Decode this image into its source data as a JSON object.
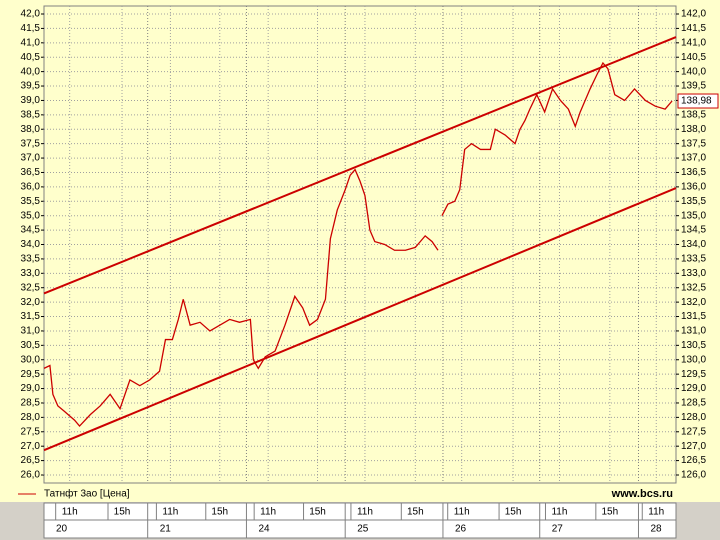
{
  "chart_data": {
    "type": "line",
    "source": "www.bcs.ru",
    "ylim": [
      26,
      42
    ],
    "yticks": [
      {
        "value": 26,
        "label": "26,0"
      },
      {
        "value": 26.5,
        "label": "26,5"
      },
      {
        "value": 27,
        "label": "27,0"
      },
      {
        "value": 27.5,
        "label": "27,5"
      },
      {
        "value": 28,
        "label": "28,0"
      },
      {
        "value": 28.5,
        "label": "28,5"
      },
      {
        "value": 29,
        "label": "29,0"
      },
      {
        "value": 29.5,
        "label": "29,5"
      },
      {
        "value": 30,
        "label": "30,0"
      },
      {
        "value": 30.5,
        "label": "30,5"
      },
      {
        "value": 31,
        "label": "31,0"
      },
      {
        "value": 31.5,
        "label": "31,5"
      },
      {
        "value": 32,
        "label": "32,0"
      },
      {
        "value": 32.5,
        "label": "32,5"
      },
      {
        "value": 33,
        "label": "33,0"
      },
      {
        "value": 33.5,
        "label": "33,5"
      },
      {
        "value": 34,
        "label": "34,0"
      },
      {
        "value": 34.5,
        "label": "34,5"
      },
      {
        "value": 35,
        "label": "35,0"
      },
      {
        "value": 35.5,
        "label": "35,5"
      },
      {
        "value": 36,
        "label": "36,0"
      },
      {
        "value": 36.5,
        "label": "36,5"
      },
      {
        "value": 37,
        "label": "37,0"
      },
      {
        "value": 37.5,
        "label": "37,5"
      },
      {
        "value": 38,
        "label": "38,0"
      },
      {
        "value": 38.5,
        "label": "38,5"
      },
      {
        "value": 39,
        "label": "39,0"
      },
      {
        "value": 39.5,
        "label": "39,5"
      },
      {
        "value": 40,
        "label": "40,0"
      },
      {
        "value": 40.5,
        "label": "40,5"
      },
      {
        "value": 41,
        "label": "41,0"
      },
      {
        "value": 41.5,
        "label": "41,5"
      },
      {
        "value": 42,
        "label": "42,0"
      }
    ],
    "y2lim": [
      126,
      142
    ],
    "y2ticks": [
      {
        "value": 126,
        "label": "126,0"
      },
      {
        "value": 126.5,
        "label": "126,5"
      },
      {
        "value": 127,
        "label": "127,0"
      },
      {
        "value": 127.5,
        "label": "127,5"
      },
      {
        "value": 128,
        "label": "128,0"
      },
      {
        "value": 128.5,
        "label": "128,5"
      },
      {
        "value": 129,
        "label": "129,0"
      },
      {
        "value": 129.5,
        "label": "129,5"
      },
      {
        "value": 130,
        "label": "130,0"
      },
      {
        "value": 130.5,
        "label": "130,5"
      },
      {
        "value": 131,
        "label": "131,0"
      },
      {
        "value": 131.5,
        "label": "131,5"
      },
      {
        "value": 132,
        "label": "132,0"
      },
      {
        "value": 132.5,
        "label": "132,5"
      },
      {
        "value": 133,
        "label": "133,0"
      },
      {
        "value": 133.5,
        "label": "133,5"
      },
      {
        "value": 134,
        "label": "134,0"
      },
      {
        "value": 134.5,
        "label": "134,5"
      },
      {
        "value": 135,
        "label": "135,0"
      },
      {
        "value": 135.5,
        "label": "135,5"
      },
      {
        "value": 136,
        "label": "136,0"
      },
      {
        "value": 136.5,
        "label": "136,5"
      },
      {
        "value": 137,
        "label": "137,0"
      },
      {
        "value": 137.5,
        "label": "137,5"
      },
      {
        "value": 138,
        "label": "138,0"
      },
      {
        "value": 138.5,
        "label": "138,5"
      },
      {
        "value": 139,
        "label": "139,0"
      },
      {
        "value": 139.5,
        "label": "139,5"
      },
      {
        "value": 140,
        "label": "140,0"
      },
      {
        "value": 140.5,
        "label": "140,5"
      },
      {
        "value": 141,
        "label": "141,0"
      },
      {
        "value": 141.5,
        "label": "141,5"
      },
      {
        "value": 142,
        "label": "142,0"
      }
    ],
    "xlim": [
      0,
      6.4
    ],
    "xticks": [
      {
        "value": 0.26,
        "label": "11h"
      },
      {
        "value": 0.79,
        "label": "15h"
      },
      {
        "value": 1.28,
        "label": "11h"
      },
      {
        "value": 1.78,
        "label": "15h"
      },
      {
        "value": 2.27,
        "label": "11h"
      },
      {
        "value": 2.77,
        "label": "15h"
      },
      {
        "value": 3.25,
        "label": "11h"
      },
      {
        "value": 3.76,
        "label": "15h"
      },
      {
        "value": 4.23,
        "label": "11h"
      },
      {
        "value": 4.75,
        "label": "15h"
      },
      {
        "value": 5.22,
        "label": "11h"
      },
      {
        "value": 5.73,
        "label": "15h"
      },
      {
        "value": 6.2,
        "label": "11h"
      }
    ],
    "dayticks": [
      {
        "value": 0,
        "label": "20"
      },
      {
        "value": 1.05,
        "label": "21"
      },
      {
        "value": 2.05,
        "label": "24"
      },
      {
        "value": 3.05,
        "label": "25"
      },
      {
        "value": 4.04,
        "label": "26"
      },
      {
        "value": 5.02,
        "label": "27"
      },
      {
        "value": 6.02,
        "label": "28"
      }
    ],
    "grid": true,
    "series": [
      {
        "name": "Татнфт 3ао [Цена]",
        "color": "#cc0000",
        "axis": "y2",
        "x": [
          0,
          0.06,
          0.09,
          0.14,
          0.21,
          0.31,
          0.36,
          0.47,
          0.57,
          0.67,
          0.77,
          0.87,
          0.97,
          1.07,
          1.17,
          1.23,
          1.3,
          1.36,
          1.41,
          1.48,
          1.58,
          1.68,
          1.78,
          1.88,
          1.98,
          2.09,
          2.12,
          2.17,
          2.24,
          2.34,
          2.44,
          2.54,
          2.62,
          2.69,
          2.77,
          2.85,
          2.9,
          2.97,
          3.05,
          3.1,
          3.15,
          3.2,
          3.25,
          3.3,
          3.35,
          3.45,
          3.55,
          3.66,
          3.76,
          3.86,
          3.93,
          3.99,
          4.01,
          4.03,
          4.09,
          4.16,
          4.21,
          4.26,
          4.33,
          4.42,
          4.52,
          4.57,
          4.67,
          4.77,
          4.82,
          4.87,
          4.92,
          4.99,
          5.07,
          5.15,
          5.23,
          5.31,
          5.38,
          5.43,
          5.53,
          5.6,
          5.66,
          5.71,
          5.78,
          5.88,
          5.98,
          6.09,
          6.19,
          6.29,
          6.36
        ],
        "values": [
          129.7,
          129.8,
          128.8,
          128.4,
          128.2,
          127.9,
          127.7,
          128.1,
          128.4,
          128.8,
          128.3,
          129.3,
          129.1,
          129.3,
          129.6,
          130.7,
          130.7,
          131.4,
          132.1,
          131.2,
          131.3,
          131.0,
          131.2,
          131.4,
          131.3,
          131.4,
          130.0,
          129.7,
          130.1,
          130.3,
          131.2,
          132.2,
          131.8,
          131.2,
          131.4,
          132.1,
          134.2,
          135.2,
          135.9,
          136.4,
          136.6,
          136.2,
          135.7,
          134.5,
          134.1,
          134.0,
          133.8,
          133.8,
          133.9,
          134.3,
          134.1,
          133.8,
          null,
          135.0,
          135.4,
          135.5,
          135.9,
          137.3,
          137.5,
          137.3,
          137.3,
          138.0,
          137.8,
          137.5,
          138.0,
          138.3,
          138.7,
          139.2,
          138.6,
          139.4,
          139.0,
          138.7,
          138.1,
          138.6,
          139.4,
          139.9,
          140.3,
          140.1,
          139.2,
          139.0,
          139.4,
          139.0,
          138.8,
          138.7,
          138.98
        ],
        "value_labels": [
          null,
          null,
          null,
          null,
          null,
          null,
          null,
          null,
          null,
          null,
          null,
          null,
          null,
          null,
          null,
          null,
          null,
          null,
          null,
          null,
          null,
          null,
          null,
          null,
          null,
          null,
          null,
          null,
          null,
          null,
          null,
          null,
          null,
          null,
          null,
          null,
          null,
          null,
          null,
          null,
          null,
          null,
          null,
          null,
          null,
          null,
          null,
          null,
          null,
          null,
          null,
          null,
          null,
          null,
          null,
          null,
          null,
          null,
          null,
          null,
          null,
          null,
          null,
          null,
          null,
          null,
          null,
          null,
          null,
          null,
          null,
          null,
          null,
          null,
          null,
          null,
          null,
          null,
          null,
          null,
          null,
          null,
          null,
          null,
          "138,98"
        ]
      },
      {
        "color": "#cc0000",
        "axis": "y2",
        "x": [
          0,
          6.4
        ],
        "values": [
          132.3,
          141.2
        ]
      },
      {
        "color": "#cc0000",
        "axis": "y2",
        "x": [
          0,
          6.4
        ],
        "values": [
          126.86,
          135.96
        ]
      }
    ]
  }
}
